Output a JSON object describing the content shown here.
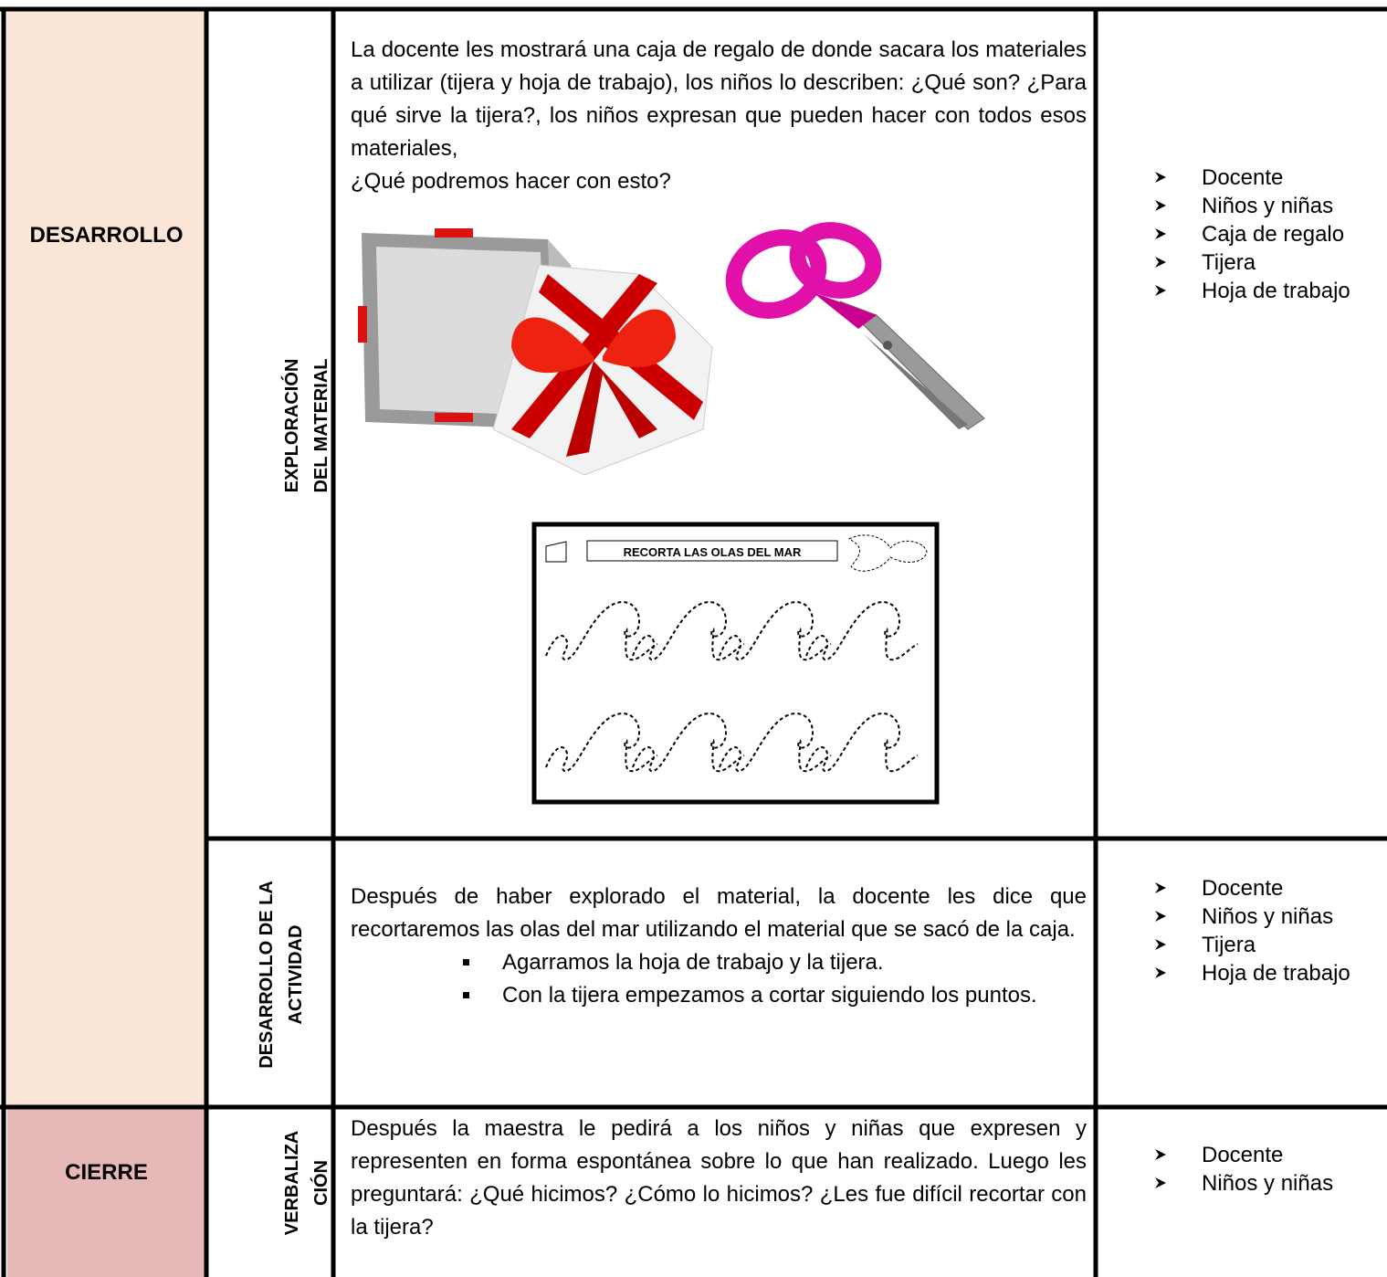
{
  "rows": [
    {
      "phase": "DESARROLLO",
      "activity": [
        "EXPLORACIÓN",
        "DEL MATERIAL"
      ],
      "paragraphs": [
        "La docente les mostrará una caja de regalo de donde sacara los materiales a utilizar (tijera y hoja de trabajo), los niños lo describen: ¿Qué son? ¿Para qué sirve la tijera?, los niños expresan que pueden hacer con todos esos materiales,",
        "¿Qué podremos hacer con esto?"
      ],
      "worksheet_title": "RECORTA LAS OLAS DEL MAR",
      "resources": [
        "Docente",
        "Niños y niñas",
        "Caja de regalo",
        "Tijera",
        "Hoja de trabajo"
      ]
    },
    {
      "activity": [
        "DESARROLLO DE LA",
        "ACTIVIDAD"
      ],
      "paragraphs": [
        "Después de haber explorado el material, la docente les dice que recortaremos las olas del mar utilizando el material que se sacó de la caja."
      ],
      "steps": [
        "Agarramos la hoja de trabajo y la tijera.",
        "Con la tijera empezamos a cortar siguiendo los puntos."
      ],
      "resources": [
        "Docente",
        "Niños y niñas",
        "Tijera",
        "Hoja de trabajo"
      ]
    },
    {
      "phase": "CIERRE",
      "activity": [
        "VERBALIZA",
        "CIÓN"
      ],
      "paragraphs": [
        "Después la maestra le pedirá a los niños y niñas que expresen y representen en forma espontánea sobre lo que han realizado. Luego les preguntará: ¿Qué hicimos? ¿Cómo lo hicimos? ¿Les fue difícil recortar con la tijera?"
      ],
      "resources": [
        "Docente",
        "Niños y niñas"
      ]
    }
  ]
}
